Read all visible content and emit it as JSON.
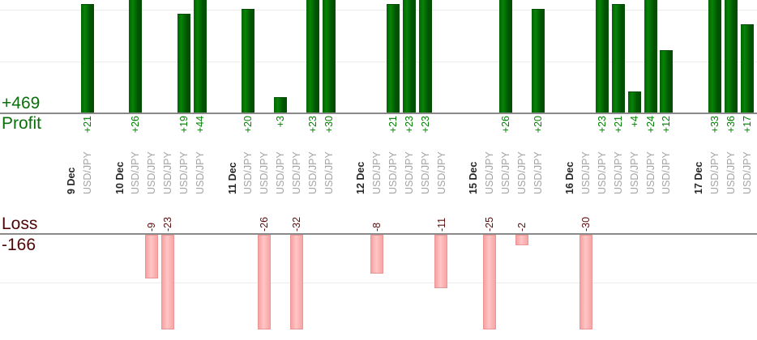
{
  "summary": {
    "profit_total": "+469",
    "profit_label": "Profit",
    "loss_label": "Loss",
    "loss_total": "-166"
  },
  "colors": {
    "profit_bar_green": "#077207",
    "profit_text_green": "#008000",
    "profit_big_label_green": "#0a6e0a",
    "loss_bar_pink": "#ffb3b3",
    "loss_bar_border_pink": "#eb9696",
    "loss_text_maroon": "#5c0e0e",
    "loss_big_label_maroon": "#4f0505",
    "date_label_color": "#262626",
    "pair_label_gray": "#a3a3a3",
    "axis_gray": "#8a8a8a",
    "gridline_gray": "#ececec"
  },
  "chart_data": {
    "type": "bar",
    "title": "",
    "orientation": "vertical",
    "profit_axis": {
      "total_label": "+469",
      "section_label": "Profit",
      "gridline_values": [
        10,
        20
      ],
      "visible_max": 21.7,
      "bars_clipped_above": 21
    },
    "loss_axis": {
      "total_label": "-166",
      "section_label": "Loss",
      "gridline_values": [
        -10
      ],
      "visible_min": -20,
      "bars_clipped_below": -20
    },
    "groups": [
      {
        "date": "9 Dec",
        "trades": [
          {
            "pair": "USD/JPY",
            "value": 21,
            "label": "+21"
          }
        ]
      },
      {
        "date": "10 Dec",
        "trades": [
          {
            "pair": "USD/JPY",
            "value": 26,
            "label": "+26"
          },
          {
            "pair": "USD/JPY",
            "value": -9,
            "label": "-9"
          },
          {
            "pair": "USD/JPY",
            "value": -23,
            "label": "-23"
          },
          {
            "pair": "USD/JPY",
            "value": 19,
            "label": "+19"
          },
          {
            "pair": "USD/JPY",
            "value": 44,
            "label": "+44"
          }
        ]
      },
      {
        "date": "11 Dec",
        "trades": [
          {
            "pair": "USD/JPY",
            "value": 20,
            "label": "+20"
          },
          {
            "pair": "USD/JPY",
            "value": -26,
            "label": "-26"
          },
          {
            "pair": "USD/JPY",
            "value": 3,
            "label": "+3"
          },
          {
            "pair": "USD/JPY",
            "value": -32,
            "label": "-32"
          },
          {
            "pair": "USD/JPY",
            "value": 23,
            "label": "+23"
          },
          {
            "pair": "USD/JPY",
            "value": 30,
            "label": "+30"
          }
        ]
      },
      {
        "date": "12 Dec",
        "trades": [
          {
            "pair": "USD/JPY",
            "value": -8,
            "label": "-8"
          },
          {
            "pair": "USD/JPY",
            "value": 21,
            "label": "+21"
          },
          {
            "pair": "USD/JPY",
            "value": 23,
            "label": "+23"
          },
          {
            "pair": "USD/JPY",
            "value": 23,
            "label": "+23"
          },
          {
            "pair": "USD/JPY",
            "value": -11,
            "label": "-11"
          }
        ]
      },
      {
        "date": "15 Dec",
        "trades": [
          {
            "pair": "USD/JPY",
            "value": -25,
            "label": "-25"
          },
          {
            "pair": "USD/JPY",
            "value": 26,
            "label": "+26"
          },
          {
            "pair": "USD/JPY",
            "value": -2,
            "label": "-2"
          },
          {
            "pair": "USD/JPY",
            "value": 20,
            "label": "+20"
          }
        ]
      },
      {
        "date": "16 Dec",
        "trades": [
          {
            "pair": "USD/JPY",
            "value": -30,
            "label": "-30"
          },
          {
            "pair": "USD/JPY",
            "value": 23,
            "label": "+23"
          },
          {
            "pair": "USD/JPY",
            "value": 21,
            "label": "+21"
          },
          {
            "pair": "USD/JPY",
            "value": 4,
            "label": "+4"
          },
          {
            "pair": "USD/JPY",
            "value": 24,
            "label": "+24"
          },
          {
            "pair": "USD/JPY",
            "value": 12,
            "label": "+12"
          }
        ]
      },
      {
        "date": "17 Dec",
        "trades": [
          {
            "pair": "USD/JPY",
            "value": 33,
            "label": "+33"
          },
          {
            "pair": "USD/JPY",
            "value": 36,
            "label": "+36"
          },
          {
            "pair": "USD/JPY",
            "value": 17,
            "label": "+17"
          }
        ]
      }
    ]
  }
}
